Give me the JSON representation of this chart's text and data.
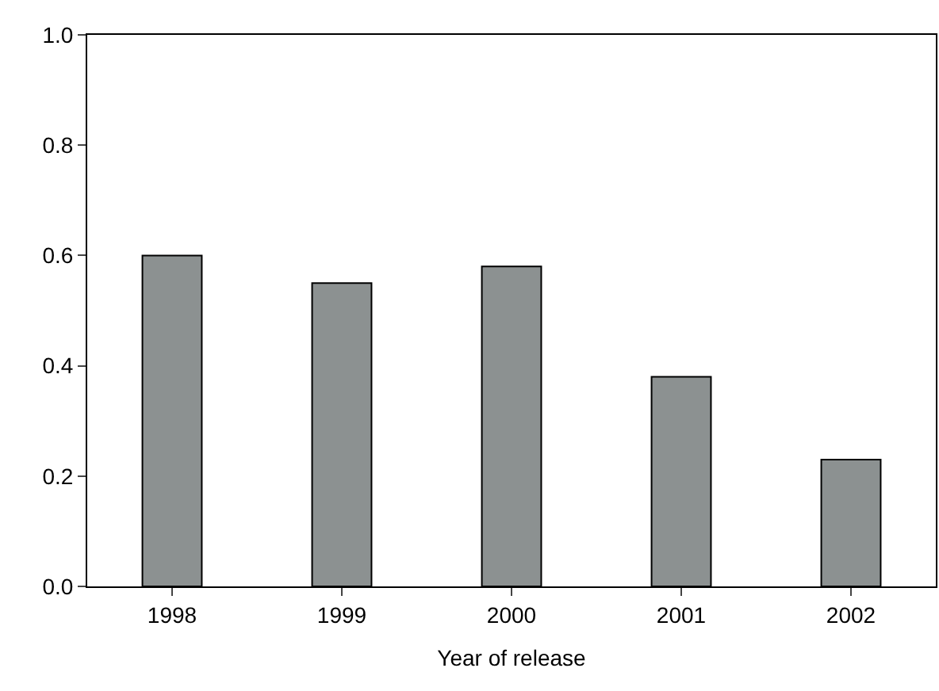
{
  "chart_data": {
    "type": "bar",
    "xlabel": "Year of release",
    "categories": [
      "1998",
      "1999",
      "2000",
      "2001",
      "2002"
    ],
    "values": [
      0.6,
      0.55,
      0.58,
      0.38,
      0.23
    ],
    "color": "#8c9191",
    "ylim": [
      0,
      1.0
    ],
    "yticks": [
      {
        "value": 0,
        "label": "0.0"
      },
      {
        "value": 0.2,
        "label": "0.2"
      },
      {
        "value": 0.4,
        "label": "0.4"
      },
      {
        "value": 0.6,
        "label": "0.6"
      },
      {
        "value": 0.8,
        "label": "0.8"
      },
      {
        "value": 1.0,
        "label": "1.0"
      }
    ],
    "grid": false
  }
}
